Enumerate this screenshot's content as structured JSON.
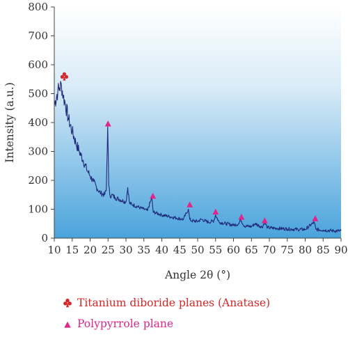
{
  "chart_data": {
    "type": "line",
    "title": "",
    "xlabel": "Angle 2θ (°)",
    "ylabel": "Intensity (a.u.)",
    "xlim": [
      10,
      90
    ],
    "ylim": [
      0,
      800
    ],
    "x_ticks": [
      10,
      15,
      20,
      25,
      30,
      35,
      40,
      45,
      50,
      55,
      60,
      65,
      70,
      75,
      80,
      85,
      90
    ],
    "y_ticks": [
      0,
      100,
      200,
      300,
      400,
      500,
      600,
      700,
      800
    ],
    "grid": false,
    "background": "gradient light-blue",
    "series": [
      {
        "color": "#1f2a7a",
        "x": [
          10,
          11,
          11.5,
          12,
          12.5,
          13,
          14,
          15,
          16,
          17,
          18,
          19,
          20,
          21,
          22,
          23,
          24,
          24.5,
          24.9,
          25.2,
          25.6,
          26,
          27,
          28,
          30,
          30.5,
          31,
          32,
          34,
          36,
          37.2,
          37.6,
          38.2,
          40,
          42,
          44,
          46,
          47.4,
          47.8,
          48.3,
          50,
          51,
          53,
          54.5,
          55,
          56,
          58,
          60,
          61.5,
          62,
          63,
          65,
          66,
          68,
          68.7,
          69.5,
          72,
          75,
          78,
          80,
          82.5,
          83,
          85,
          88,
          90
        ],
        "y": [
          460,
          510,
          520,
          530,
          490,
          470,
          410,
          370,
          330,
          300,
          270,
          240,
          215,
          195,
          170,
          155,
          150,
          165,
          390,
          180,
          145,
          150,
          140,
          135,
          125,
          175,
          120,
          115,
          105,
          95,
          140,
          90,
          88,
          80,
          75,
          70,
          65,
          100,
          65,
          60,
          58,
          65,
          55,
          60,
          80,
          55,
          50,
          45,
          50,
          65,
          42,
          40,
          50,
          38,
          55,
          36,
          34,
          32,
          30,
          30,
          55,
          30,
          28,
          25,
          25
        ]
      }
    ],
    "annotations": [
      {
        "marker": "club",
        "x": 12.8,
        "y": 560,
        "color": "#d62728"
      },
      {
        "marker": "triangle",
        "x": 25,
        "y": 395,
        "color": "#e0268a"
      },
      {
        "marker": "triangle",
        "x": 37.5,
        "y": 145,
        "color": "#e0268a"
      },
      {
        "marker": "triangle",
        "x": 47.8,
        "y": 115,
        "color": "#e0268a"
      },
      {
        "marker": "triangle",
        "x": 55,
        "y": 90,
        "color": "#e0268a"
      },
      {
        "marker": "triangle",
        "x": 62.2,
        "y": 72,
        "color": "#e0268a"
      },
      {
        "marker": "triangle",
        "x": 68.7,
        "y": 60,
        "color": "#e0268a"
      },
      {
        "marker": "triangle",
        "x": 82.8,
        "y": 67,
        "color": "#e0268a"
      }
    ]
  },
  "legend": {
    "items": [
      {
        "label": "Titanium diboride planes (Anatase)",
        "marker": "club",
        "color": "#d62728"
      },
      {
        "label": "Polypyrrole plane",
        "marker": "triangle",
        "color": "#e0268a"
      }
    ]
  }
}
